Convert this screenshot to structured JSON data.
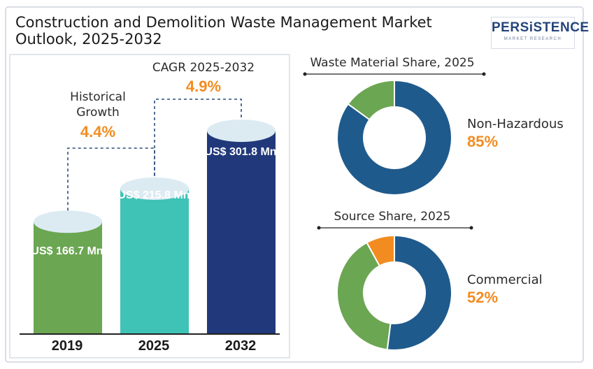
{
  "title": "Construction and Demolition Waste Management Market Outlook, 2025-2032",
  "logo": {
    "main": "PERSiSTENCE",
    "sub": "MARKET RESEARCH"
  },
  "colors": {
    "bar_2019": "#6ba652",
    "bar_2025": "#3ec3b6",
    "bar_2032": "#21397a",
    "accent": "#f28c21",
    "donut_blue": "#1f5a8c",
    "donut_green": "#6ba652",
    "donut_orange": "#f28c21"
  },
  "chart_data": [
    {
      "type": "bar",
      "categories": [
        "2019",
        "2025",
        "2032"
      ],
      "values": [
        166.7,
        215.8,
        301.8
      ],
      "value_labels": [
        "US$ 166.7 Mn",
        "US$ 215.8 Mn",
        "US$ 301.8 Mn"
      ],
      "annotations": [
        {
          "label": "Historical Growth",
          "value": "4.4%"
        },
        {
          "label": "CAGR 2025-2032",
          "value": "4.9%"
        }
      ]
    },
    {
      "type": "pie",
      "title": "Waste Material Share, 2025",
      "slices": [
        {
          "name": "Non-Hazardous",
          "value": 85,
          "color": "#1f5a8c"
        },
        {
          "value": 15,
          "color": "#6ba652"
        }
      ],
      "callout": {
        "label": "Non-Hazardous",
        "value": "85%"
      }
    },
    {
      "type": "pie",
      "title": "Source Share, 2025",
      "slices": [
        {
          "name": "Commercial",
          "value": 52,
          "color": "#1f5a8c"
        },
        {
          "value": 40,
          "color": "#6ba652"
        },
        {
          "value": 8,
          "color": "#f28c21"
        }
      ],
      "callout": {
        "label": "Commercial",
        "value": "52%"
      }
    }
  ]
}
